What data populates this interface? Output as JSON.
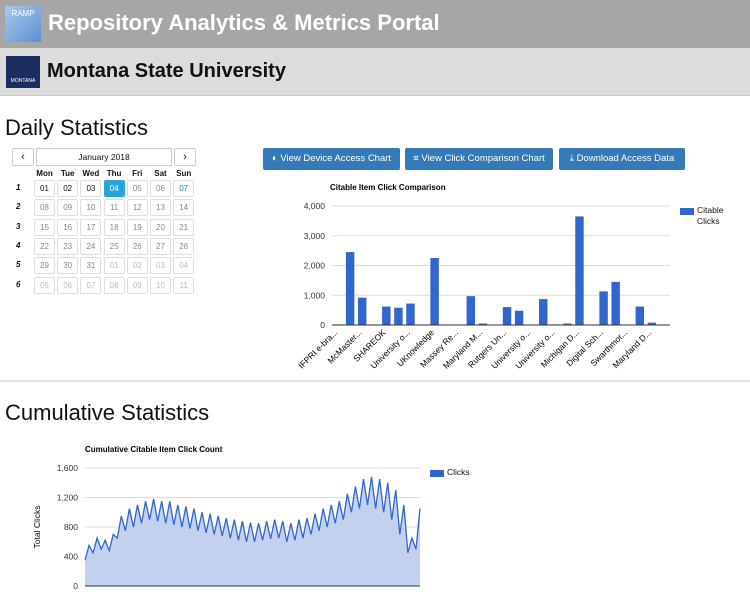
{
  "header": {
    "logo": "RAMP",
    "title": "Repository Analytics & Metrics Portal"
  },
  "institution": {
    "logo": "MONTANA",
    "name": "Montana State University"
  },
  "daily": {
    "heading": "Daily Statistics",
    "calendar": {
      "month": "January 2018",
      "weekdays": [
        "Mon",
        "Tue",
        "Wed",
        "Thu",
        "Fri",
        "Sat",
        "Sun"
      ],
      "selected": "04",
      "weeks": [
        {
          "number": "1",
          "days": [
            "01",
            "02",
            "03",
            "04",
            "05",
            "06",
            "07"
          ]
        },
        {
          "number": "2",
          "days": [
            "08",
            "09",
            "10",
            "11",
            "12",
            "13",
            "14"
          ]
        },
        {
          "number": "3",
          "days": [
            "15",
            "16",
            "17",
            "18",
            "19",
            "20",
            "21"
          ]
        },
        {
          "number": "4",
          "days": [
            "22",
            "23",
            "24",
            "25",
            "26",
            "27",
            "28"
          ]
        },
        {
          "number": "5",
          "days": [
            "29",
            "30",
            "31",
            "01",
            "02",
            "03",
            "04"
          ]
        },
        {
          "number": "6",
          "days": [
            "05",
            "06",
            "07",
            "08",
            "09",
            "10",
            "11"
          ]
        }
      ]
    },
    "buttons": [
      "View Device Access Chart",
      "View Click Comparison Chart",
      "Download Access Data"
    ]
  },
  "cumulative": {
    "heading": "Cumulative Statistics"
  },
  "chart_data": [
    {
      "type": "bar",
      "title": "Citable Item Click Comparison",
      "categories": [
        "IFPRI e-bra...",
        null,
        "McMaster...",
        null,
        "SHAREOK",
        null,
        "University o...",
        null,
        "UKnowledge",
        null,
        "Massey Re...",
        null,
        "Maryland M...",
        null,
        "Rutgers Un...",
        null,
        "University o...",
        null,
        "University o...",
        null,
        "Michigan D...",
        null,
        "Digital Sch...",
        null,
        "Swarthmor...",
        null,
        "Maryland D...",
        null
      ],
      "series": [
        {
          "name": "Citable Clicks",
          "color": "#3366cc",
          "values": [
            20,
            2450,
            920,
            20,
            620,
            580,
            720,
            0,
            2250,
            10,
            10,
            970,
            50,
            10,
            600,
            480,
            10,
            870,
            20,
            50,
            3650,
            10,
            1130,
            1450,
            10,
            620,
            80,
            0
          ]
        }
      ],
      "ylim": [
        0,
        4000
      ],
      "yticks": [
        0,
        {
          "value": 1000,
          "label": "1,000"
        },
        {
          "value": 2000,
          "label": "2,000"
        },
        {
          "value": 3000,
          "label": "3,000"
        },
        {
          "value": 4000,
          "label": "4,000"
        }
      ],
      "grid": true,
      "legend": "right"
    },
    {
      "type": "area",
      "title": "Cumulative Citable Item Click Count",
      "ylabel": "Total Clicks",
      "series": [
        {
          "name": "Clicks",
          "color": "#3366cc",
          "fill": "#c3d1ef",
          "values": [
            350,
            550,
            450,
            650,
            500,
            620,
            480,
            700,
            650,
            950,
            750,
            1050,
            800,
            1100,
            850,
            1150,
            900,
            1180,
            880,
            1150,
            850,
            1150,
            830,
            1100,
            800,
            1080,
            780,
            1050,
            750,
            1000,
            720,
            980,
            700,
            950,
            680,
            920,
            650,
            900,
            620,
            880,
            600,
            860,
            600,
            850,
            620,
            880,
            640,
            900,
            650,
            880,
            600,
            850,
            620,
            900,
            650,
            920,
            700,
            980,
            750,
            1050,
            800,
            1100,
            850,
            1150,
            900,
            1250,
            1000,
            1350,
            1050,
            1450,
            1100,
            1480,
            1050,
            1450,
            1000,
            1400,
            900,
            1300,
            700,
            1100,
            450,
            650,
            500,
            1050
          ]
        }
      ],
      "ylim": [
        0,
        1600
      ],
      "yticks": [
        0,
        400,
        800,
        {
          "value": 1200,
          "label": "1,200"
        },
        {
          "value": 1600,
          "label": "1,600"
        }
      ],
      "grid": true,
      "legend": "right"
    }
  ]
}
